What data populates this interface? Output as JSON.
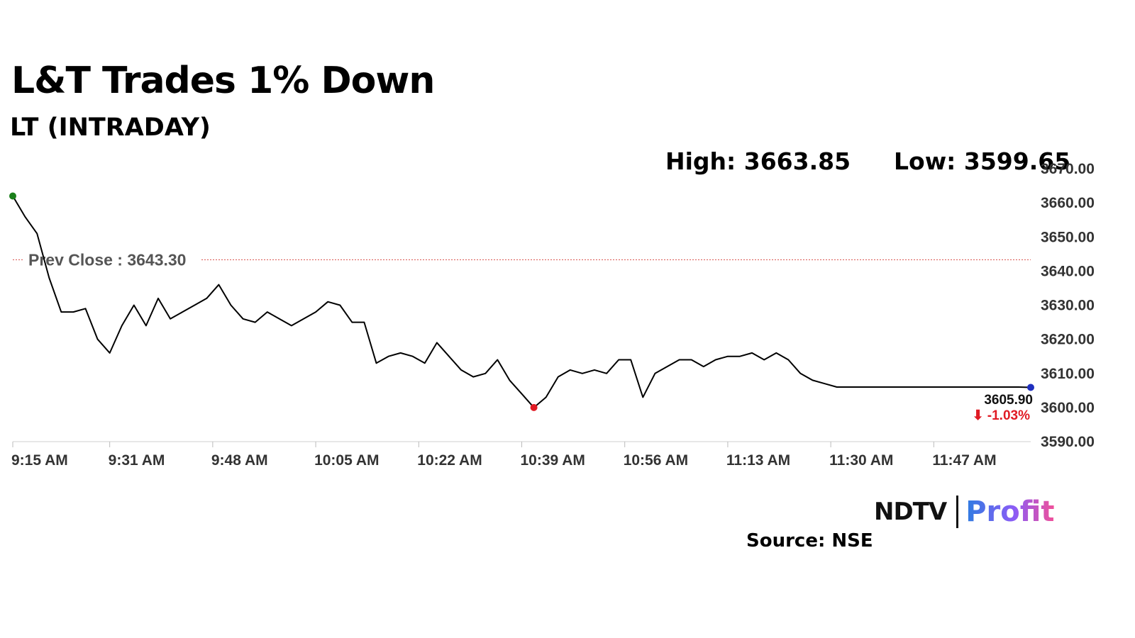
{
  "header": {
    "title": "L&T Trades 1% Down",
    "subtitle": "LT (INTRADAY)",
    "high_label": "High: 3663.85",
    "low_label": "Low: 3599.65"
  },
  "footer": {
    "logo_text": "NDTV",
    "logo_accent": "Profit",
    "source": "Source: NSE"
  },
  "chart_data": {
    "type": "line",
    "series": [
      {
        "x": [
          "9:15 AM",
          "9:17 AM",
          "9:19 AM",
          "9:21 AM",
          "9:23 AM",
          "9:25 AM",
          "9:27 AM",
          "9:29 AM",
          "9:31 AM",
          "9:33 AM",
          "9:35 AM",
          "9:37 AM",
          "9:39 AM",
          "9:41 AM",
          "9:43 AM",
          "9:45 AM",
          "9:47 AM",
          "9:49 AM",
          "9:51 AM",
          "9:53 AM",
          "9:55 AM",
          "9:57 AM",
          "9:59 AM",
          "10:01 AM",
          "10:03 AM",
          "10:05 AM",
          "10:07 AM",
          "10:09 AM",
          "10:11 AM",
          "10:13 AM",
          "10:15 AM",
          "10:17 AM",
          "10:19 AM",
          "10:21 AM",
          "10:23 AM",
          "10:25 AM",
          "10:27 AM",
          "10:29 AM",
          "10:31 AM",
          "10:33 AM",
          "10:35 AM",
          "10:37 AM",
          "10:39 AM",
          "10:41 AM",
          "10:43 AM",
          "10:45 AM",
          "10:47 AM",
          "10:49 AM",
          "10:51 AM",
          "10:53 AM",
          "10:55 AM",
          "10:57 AM",
          "10:59 AM",
          "11:01 AM",
          "11:03 AM",
          "11:05 AM",
          "11:07 AM",
          "11:09 AM",
          "11:11 AM",
          "11:13 AM",
          "11:15 AM",
          "11:17 AM",
          "11:19 AM",
          "11:21 AM",
          "11:23 AM",
          "11:25 AM",
          "11:27 AM",
          "11:29 AM",
          "11:31 AM",
          "11:33 AM",
          "11:35 AM",
          "11:37 AM",
          "11:39 AM",
          "11:41 AM",
          "11:43 AM",
          "11:45 AM",
          "11:47 AM",
          "11:49 AM",
          "11:51 AM",
          "11:53 AM",
          "11:55 AM",
          "11:57 AM",
          "11:59 AM",
          "12:01 PM",
          "12:03 PM"
        ],
        "values": [
          3662,
          3656,
          3651,
          3638,
          3628,
          3628,
          3629,
          3620,
          3616,
          3624,
          3630,
          3624,
          3632,
          3626,
          3628,
          3630,
          3632,
          3636,
          3630,
          3626,
          3625,
          3628,
          3626,
          3624,
          3626,
          3628,
          3631,
          3630,
          3625,
          3625,
          3613,
          3615,
          3616,
          3615,
          3613,
          3619,
          3615,
          3611,
          3609,
          3610,
          3614,
          3608,
          3604,
          3600,
          3603,
          3609,
          3611,
          3610,
          3611,
          3610,
          3614,
          3614,
          3603,
          3610,
          3612,
          3614,
          3614,
          3612,
          3614,
          3615,
          3615,
          3616,
          3614,
          3616,
          3614,
          3610,
          3608,
          3607,
          3606,
          3606,
          3606,
          3606,
          3606,
          3606,
          3606,
          3606,
          3606,
          3606,
          3606,
          3606,
          3606,
          3606,
          3606,
          3606,
          3605.9
        ]
      }
    ],
    "x_ticks": [
      "9:15 AM",
      "9:31 AM",
      "9:48 AM",
      "10:05 AM",
      "10:22 AM",
      "10:39 AM",
      "10:56 AM",
      "11:13 AM",
      "11:30 AM",
      "11:47 AM"
    ],
    "y_ticks": [
      "3670.00",
      "3660.00",
      "3650.00",
      "3640.00",
      "3630.00",
      "3620.00",
      "3610.00",
      "3600.00",
      "3590.00"
    ],
    "ylim": [
      3590,
      3670
    ],
    "prev_close": 3643.3,
    "prev_close_label": "Prev Close : 3643.30",
    "last_price_label": "3605.90",
    "change_label": "⬇ -1.03%",
    "high": 3663.85,
    "low": 3599.65,
    "colors": {
      "line": "#000000",
      "prev_close": "#d9534f",
      "open_marker": "#1a7f1a",
      "low_marker": "#e01b24",
      "last_marker": "#1f2fbf",
      "change": "#e01b24"
    }
  }
}
